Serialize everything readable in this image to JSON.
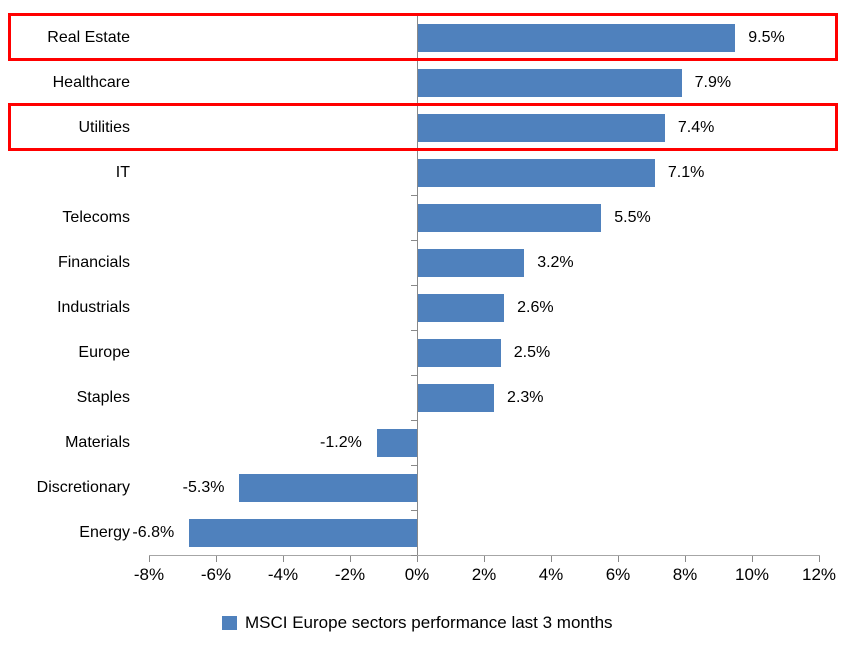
{
  "chart_data": {
    "type": "bar",
    "orientation": "horizontal",
    "title": "",
    "xlabel": "",
    "ylabel": "",
    "categories": [
      "Real Estate",
      "Healthcare",
      "Utilities",
      "IT",
      "Telecoms",
      "Financials",
      "Industrials",
      "Europe",
      "Staples",
      "Materials",
      "Discretionary",
      "Energy"
    ],
    "values": [
      9.5,
      7.9,
      7.4,
      7.1,
      5.5,
      3.2,
      2.6,
      2.5,
      2.3,
      -1.2,
      -5.3,
      -6.8
    ],
    "data_labels": [
      "9.5%",
      "7.9%",
      "7.4%",
      "7.1%",
      "5.5%",
      "3.2%",
      "2.6%",
      "2.5%",
      "2.3%",
      "-1.2%",
      "-5.3%",
      "-6.8%"
    ],
    "xlim": [
      -8,
      12
    ],
    "x_tick_step": 2,
    "x_tick_labels": [
      "-8%",
      "-6%",
      "-4%",
      "-2%",
      "0%",
      "2%",
      "4%",
      "6%",
      "8%",
      "10%",
      "12%"
    ],
    "grid": "off",
    "legend": "MSCI Europe sectors performance last 3 months",
    "legend_position": "bottom",
    "bar_color": "#4F81BD",
    "value_axis_color": "#A6A6A6",
    "category_axis_color": "#898989",
    "tick_color": "#898989",
    "text_color": "#000000",
    "highlight_color": "#FF0000",
    "highlighted_rows": [
      0,
      2
    ],
    "highlighted_categories": [
      "Real Estate",
      "Utilities"
    ]
  }
}
